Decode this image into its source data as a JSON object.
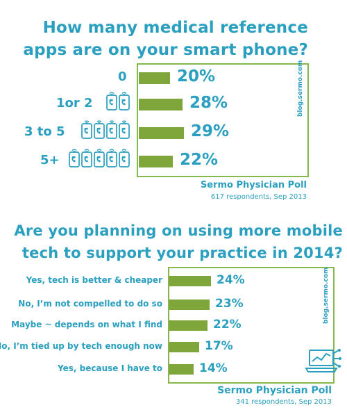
{
  "chart_data": [
    {
      "type": "bar",
      "title": "How many medical reference apps are on your smart phone?",
      "categories": [
        "0",
        "1or 2",
        "3 to 5",
        "5+"
      ],
      "values": [
        20,
        28,
        29,
        22
      ],
      "value_labels": [
        "20%",
        "28%",
        "29%",
        "22%"
      ],
      "icon_counts": [
        0,
        2,
        4,
        5
      ],
      "watermark": "blog.sermo.com",
      "source": "Sermo Physician Poll",
      "source_detail": "617 respondents, Sep 2013",
      "bar_color": "#7ea63a",
      "text_color": "#2a9fbf"
    },
    {
      "type": "bar",
      "title": "Are you planning on using more mobile tech to support your practice in 2014?",
      "categories": [
        "Yes, tech is better & cheaper",
        "No, I’m not compelled to do so",
        "Maybe ~ depends on what I find",
        "No, I’m tied up by tech enough now",
        "Yes, because I have to"
      ],
      "values": [
        24,
        23,
        22,
        17,
        14
      ],
      "value_labels": [
        "24%",
        "23%",
        "22%",
        "17%",
        "14%"
      ],
      "watermark": "blog.sermo.com",
      "source": "Sermo Physician Poll",
      "source_detail": "341 respondents, Sep 2013",
      "bar_color": "#7ea63a",
      "text_color": "#2a9fbf"
    }
  ]
}
